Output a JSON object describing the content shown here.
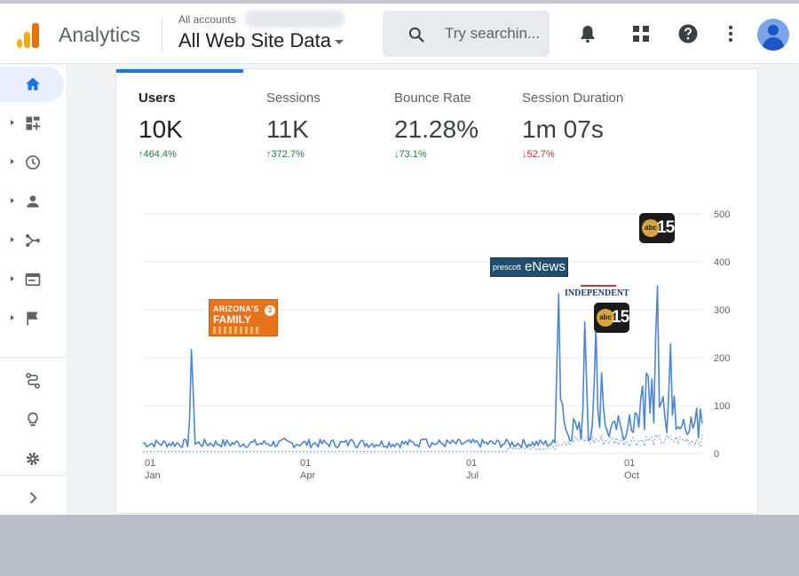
{
  "header": {
    "product": "Analytics",
    "account_label": "All accounts",
    "property_name": "All Web Site Data",
    "search_placeholder": "Try searchin..."
  },
  "sidebar": {
    "items": [
      "home",
      "dashboards",
      "realtime",
      "audience",
      "acquisition",
      "behavior",
      "conversions",
      "attribution",
      "discover",
      "admin",
      "expand"
    ]
  },
  "metrics": [
    {
      "label": "Users",
      "value": "10K",
      "change": "↑464.4%",
      "trend": "up",
      "color": "#188038"
    },
    {
      "label": "Sessions",
      "value": "11K",
      "change": "↑372.7%",
      "trend": "up",
      "color": "#188038"
    },
    {
      "label": "Bounce Rate",
      "value": "21.28%",
      "change": "↓73.1%",
      "trend": "down",
      "color": "#188038"
    },
    {
      "label": "Session Duration",
      "value": "1m 07s",
      "change": "↓52.7%",
      "trend": "down",
      "color": "#d93025"
    }
  ],
  "colors": {
    "accent": "#1a73e8",
    "line": "#4a86d4",
    "positive": "#188038",
    "negative": "#d93025"
  },
  "chart_data": {
    "type": "line",
    "ylim": [
      0,
      500
    ],
    "yticks": [
      "500",
      "400",
      "300",
      "200",
      "100",
      "0"
    ],
    "xticks": [
      {
        "day": "01",
        "month": "Jan"
      },
      {
        "day": "01",
        "month": "Apr"
      },
      {
        "day": "01",
        "month": "Jul"
      },
      {
        "day": "01",
        "month": "Oct"
      }
    ],
    "series": [
      {
        "name": "current",
        "style": "solid"
      },
      {
        "name": "comparison",
        "style": "dashed"
      }
    ],
    "annotations": [
      {
        "label": "ARIZONA'S FAMILY",
        "sublabel": "3",
        "date": "Mar 10",
        "value": 245
      },
      {
        "label": "prescott eNews",
        "date": "Aug 25",
        "value": 365
      },
      {
        "label": "INDEPENDENT",
        "date": "Sep 05",
        "value": 300
      },
      {
        "label": "abc15",
        "date": "Sep 12",
        "value": 305
      },
      {
        "label": "abc15",
        "date": "Oct 15",
        "value": 422
      }
    ]
  },
  "logos": {
    "af_top": "ARIZONA'S",
    "af_main": "FAMILY",
    "af_num": "3",
    "pen_a": "prescott",
    "pen_b": "eNews",
    "ind": "INDEPENDENT",
    "abc_a": "abc",
    "abc_b": "15"
  }
}
